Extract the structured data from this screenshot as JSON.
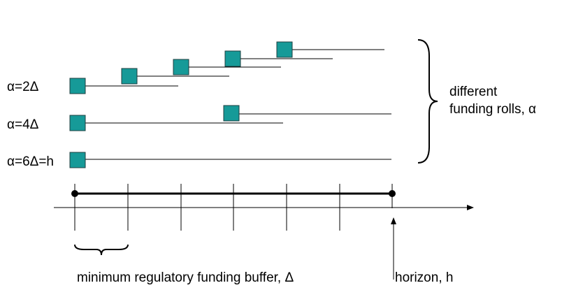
{
  "rows": [
    {
      "label": "α=2Δ"
    },
    {
      "label": "α=4Δ"
    },
    {
      "label": "α=6Δ=h"
    }
  ],
  "brace_label": [
    "different",
    "funding rolls, α"
  ],
  "buffer_label": "minimum regulatory funding buffer, Δ",
  "horizon_label": "horizon, h"
}
